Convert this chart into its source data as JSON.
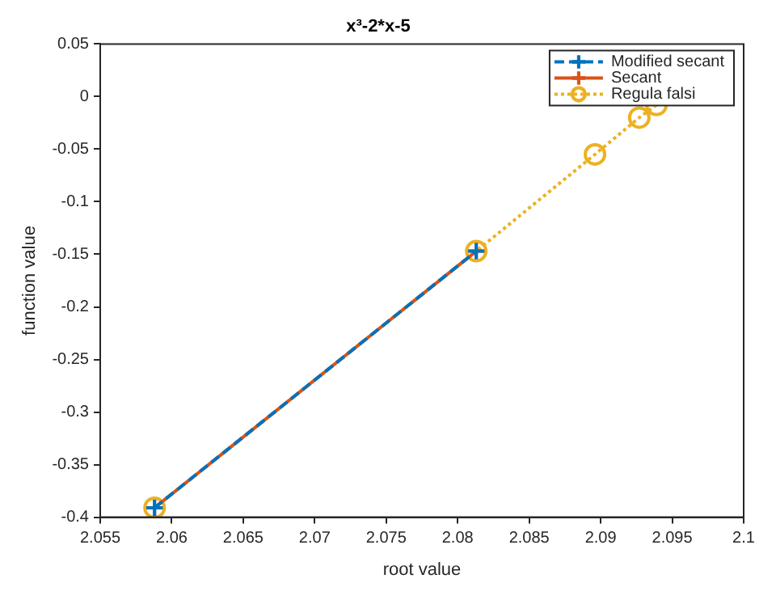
{
  "chart_data": {
    "type": "line",
    "title": "x³-2*x-5",
    "xlabel": "root value",
    "ylabel": "function value",
    "series": [
      {
        "name": "Modified secant",
        "color": "#0072bd",
        "marker": "cross",
        "line_style": "dashed",
        "x": [
          2.0588,
          2.0813
        ],
        "values": [
          -0.391,
          -0.147
        ]
      },
      {
        "name": "Secant",
        "color": "#d95319",
        "marker": "cross",
        "line_style": "solid",
        "x": [
          2.0588,
          2.0813
        ],
        "values": [
          -0.391,
          -0.147
        ]
      },
      {
        "name": "Regula falsi",
        "color": "#edb120",
        "marker": "circle",
        "line_style": "dotted",
        "x": [
          2.0588,
          2.0813,
          2.0896,
          2.0927,
          2.0939
        ],
        "values": [
          -0.391,
          -0.147,
          -0.055,
          -0.02,
          -0.008
        ]
      }
    ],
    "xlim": [
      2.055,
      2.1
    ],
    "xticks": [
      2.055,
      2.06,
      2.065,
      2.07,
      2.075,
      2.08,
      2.085,
      2.09,
      2.095,
      2.1
    ],
    "ylim": [
      -0.4,
      0.05
    ],
    "yticks": [
      -0.4,
      -0.35,
      -0.3,
      -0.25,
      -0.2,
      -0.15,
      -0.1,
      -0.05,
      0,
      0.05
    ],
    "grid": false,
    "legend": "top right"
  }
}
